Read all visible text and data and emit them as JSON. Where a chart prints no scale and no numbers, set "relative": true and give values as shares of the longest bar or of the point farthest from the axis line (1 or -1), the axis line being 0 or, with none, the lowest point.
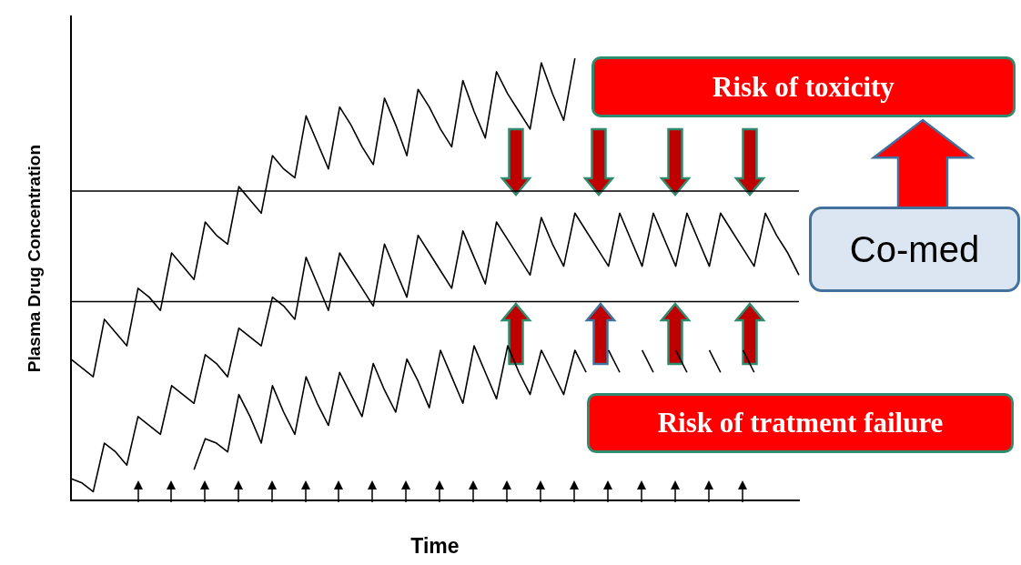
{
  "chart_data": {
    "type": "line",
    "relative": true,
    "xlabel": "Time",
    "ylabel": "Plasma Drug Concentration",
    "categories": [
      null,
      null,
      null,
      null,
      null,
      null,
      null,
      null,
      null,
      null,
      null,
      null,
      null,
      null,
      null,
      null,
      null,
      null,
      null,
      null,
      null,
      null,
      null,
      null,
      null,
      null,
      null,
      null,
      null,
      null,
      null,
      null,
      null,
      null,
      null,
      null,
      null,
      null,
      null,
      null,
      null,
      null,
      null,
      null,
      null,
      null,
      null,
      null,
      null,
      null,
      null,
      null,
      null,
      null,
      null,
      null,
      null,
      null,
      null,
      null,
      null,
      null,
      null,
      null,
      null,
      null
    ],
    "series": [
      {
        "color": "#000000",
        "values": [
          0.32,
          0.3,
          0.28,
          0.41,
          0.38,
          0.35,
          0.48,
          0.46,
          0.43,
          0.56,
          0.53,
          0.5,
          0.63,
          0.6,
          0.58,
          0.71,
          0.68,
          0.65,
          0.78,
          0.75,
          0.73,
          0.87,
          0.81,
          0.75,
          0.89,
          0.85,
          0.8,
          0.76,
          0.91,
          0.85,
          0.78,
          0.93,
          0.89,
          0.84,
          0.8,
          0.95,
          0.88,
          0.82,
          0.97,
          0.92,
          0.88,
          0.84,
          0.99,
          0.92,
          0.86,
          1,
          null,
          null,
          null,
          null,
          null,
          null,
          null,
          null,
          null,
          null,
          null,
          null,
          null,
          null,
          null,
          null,
          null,
          null,
          null,
          null
        ]
      },
      {
        "color": "#000000",
        "values": [
          0.05,
          0.04,
          0.02,
          0.13,
          0.11,
          0.08,
          0.19,
          0.17,
          0.15,
          0.26,
          0.24,
          0.22,
          0.33,
          0.31,
          0.28,
          0.39,
          0.37,
          0.35,
          0.46,
          0.44,
          0.41,
          0.55,
          0.49,
          0.43,
          0.56,
          0.52,
          0.48,
          0.44,
          0.58,
          0.52,
          0.46,
          0.6,
          0.56,
          0.52,
          0.48,
          0.61,
          0.55,
          0.49,
          0.63,
          0.59,
          0.55,
          0.51,
          0.64,
          0.58,
          0.53,
          0.65,
          0.61,
          0.57,
          0.53,
          0.65,
          0.59,
          0.53,
          0.65,
          0.59,
          0.53,
          0.65,
          0.59,
          0.53,
          0.65,
          0.61,
          0.57,
          0.53,
          0.65,
          0.6,
          0.56,
          0.51
        ]
      },
      {
        "color": "#000000",
        "values": [
          null,
          null,
          null,
          null,
          null,
          null,
          null,
          null,
          null,
          null,
          null,
          0.07,
          0.14,
          0.13,
          0.11,
          0.24,
          0.19,
          0.13,
          0.26,
          0.2,
          0.15,
          0.28,
          0.22,
          0.17,
          0.29,
          0.24,
          0.19,
          0.31,
          0.25,
          0.2,
          0.32,
          0.27,
          0.21,
          0.34,
          0.28,
          0.22,
          0.35,
          0.29,
          0.23,
          0.35,
          0.29,
          0.24,
          0.34,
          0.29,
          0.24,
          0.34,
          0.29,
          null,
          0.34,
          0.29,
          null,
          0.34,
          0.29,
          null,
          0.34,
          0.29,
          null,
          0.34,
          0.29,
          null,
          0.34,
          0.29,
          null,
          null,
          null,
          null
        ]
      }
    ],
    "ref_lines": [
      {
        "axis": "y",
        "value": 0.7,
        "color": "#000000"
      },
      {
        "axis": "y",
        "value": 0.45,
        "color": "#000000"
      }
    ],
    "annotations": [
      "Risk of toxicity",
      "Co-med",
      "Risk of tratment failure"
    ],
    "legend": false,
    "grid": false,
    "marker": "none",
    "line_style": "solid"
  }
}
